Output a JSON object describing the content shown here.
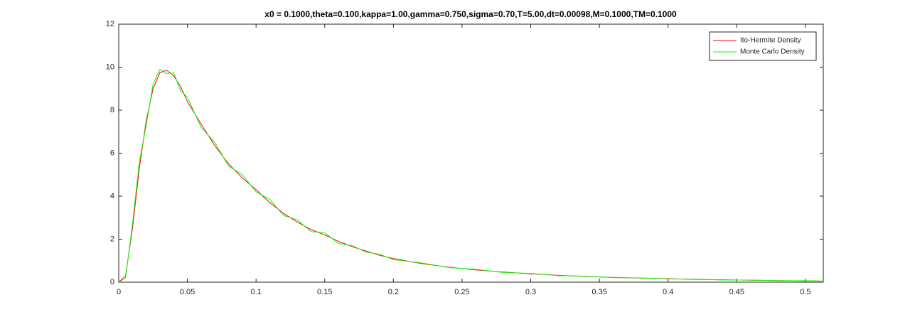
{
  "chart_data": {
    "type": "line",
    "title": "x0 = 0.1000,theta=0.100,kappa=1.00,gamma=0.750,sigma=0.70,T=5.00,dt=0.00098,M=0.1000,TM=0.1000",
    "x": [
      0,
      0.005,
      0.01,
      0.015,
      0.02,
      0.025,
      0.03,
      0.035,
      0.04,
      0.045,
      0.05,
      0.06,
      0.07,
      0.08,
      0.09,
      0.1,
      0.11,
      0.12,
      0.13,
      0.14,
      0.15,
      0.16,
      0.17,
      0.18,
      0.19,
      0.2,
      0.22,
      0.24,
      0.26,
      0.28,
      0.3,
      0.32,
      0.34,
      0.36,
      0.38,
      0.4,
      0.42,
      0.44,
      0.46,
      0.48,
      0.5,
      0.513
    ],
    "series": [
      {
        "name": "Ito-Hermite Density",
        "color": "#ff0000",
        "values": [
          0,
          0.3,
          2.5,
          5.3,
          7.5,
          9.0,
          9.75,
          9.85,
          9.6,
          9.1,
          8.4,
          7.35,
          6.35,
          5.5,
          4.85,
          4.3,
          3.7,
          3.2,
          2.8,
          2.45,
          2.2,
          1.9,
          1.65,
          1.45,
          1.25,
          1.1,
          0.87,
          0.7,
          0.57,
          0.47,
          0.39,
          0.32,
          0.27,
          0.22,
          0.19,
          0.16,
          0.13,
          0.11,
          0.09,
          0.075,
          0.06,
          0.05
        ]
      },
      {
        "name": "Monte Carlo Density",
        "color": "#00ff00",
        "values": [
          0,
          0.2,
          2.7,
          5.6,
          7.3,
          9.2,
          9.9,
          9.7,
          9.75,
          8.9,
          8.6,
          7.2,
          6.5,
          5.4,
          5.0,
          4.2,
          3.85,
          3.1,
          2.9,
          2.35,
          2.3,
          1.8,
          1.7,
          1.4,
          1.3,
          1.05,
          0.9,
          0.68,
          0.6,
          0.45,
          0.41,
          0.3,
          0.28,
          0.21,
          0.2,
          0.15,
          0.14,
          0.1,
          0.1,
          0.07,
          0.07,
          0.05
        ]
      }
    ],
    "xlim": [
      0,
      0.513
    ],
    "ylim": [
      0,
      12
    ],
    "xticks": [
      0,
      0.05,
      0.1,
      0.15,
      0.2,
      0.25,
      0.3,
      0.35,
      0.4,
      0.45,
      0.5
    ],
    "yticks": [
      0,
      2,
      4,
      6,
      8,
      10,
      12
    ],
    "legend": "upper right",
    "grid": false
  }
}
